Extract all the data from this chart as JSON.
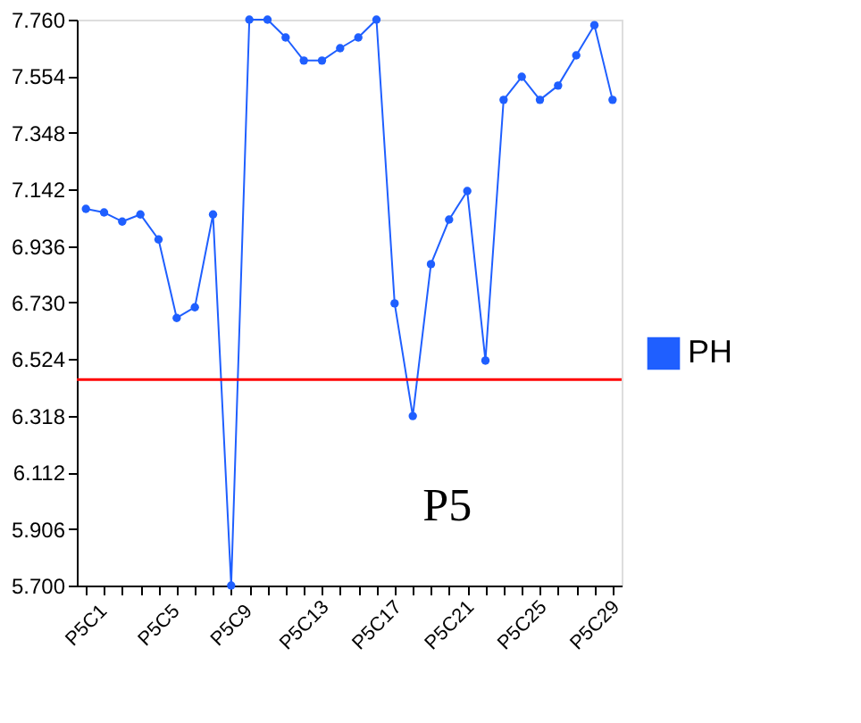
{
  "chart_data": {
    "type": "line",
    "categories": [
      "P5C1",
      null,
      null,
      null,
      "P5C5",
      null,
      null,
      null,
      "P5C9",
      null,
      null,
      null,
      "P5C13",
      null,
      null,
      null,
      "P5C17",
      null,
      null,
      null,
      "P5C21",
      null,
      null,
      null,
      "P5C25",
      null,
      null,
      null,
      "P5C29",
      null
    ],
    "series": [
      {
        "name": "PH",
        "color": "#1f5fff",
        "values": [
          7.071,
          7.058,
          7.025,
          7.051,
          6.96,
          6.674,
          6.713,
          7.051,
          5.7,
          7.76,
          7.76,
          7.695,
          7.611,
          7.611,
          7.656,
          7.695,
          7.76,
          6.727,
          6.317,
          6.87,
          7.032,
          7.136,
          6.519,
          7.468,
          7.552,
          7.468,
          7.52,
          7.63,
          7.74,
          7.468
        ]
      }
    ],
    "ylim": [
      5.7,
      7.76
    ],
    "yticks": [
      {
        "value": 5.7,
        "label": "5.700"
      },
      {
        "value": 5.906,
        "label": "5.906"
      },
      {
        "value": 6.112,
        "label": "6.112"
      },
      {
        "value": 6.318,
        "label": "6.318"
      },
      {
        "value": 6.524,
        "label": "6.524"
      },
      {
        "value": 6.73,
        "label": "6.730"
      },
      {
        "value": 6.936,
        "label": "6.936"
      },
      {
        "value": 7.142,
        "label": "7.142"
      },
      {
        "value": 7.348,
        "label": "7.348"
      },
      {
        "value": 7.554,
        "label": "7.554"
      },
      {
        "value": 7.76,
        "label": "7.760"
      }
    ],
    "ref_lines": [
      {
        "axis": "y",
        "value": 6.45,
        "color": "#ff0000"
      }
    ],
    "annotations": [
      "P5"
    ],
    "marker": "circle",
    "grid": false,
    "legend": "right",
    "line_style": "solid"
  }
}
